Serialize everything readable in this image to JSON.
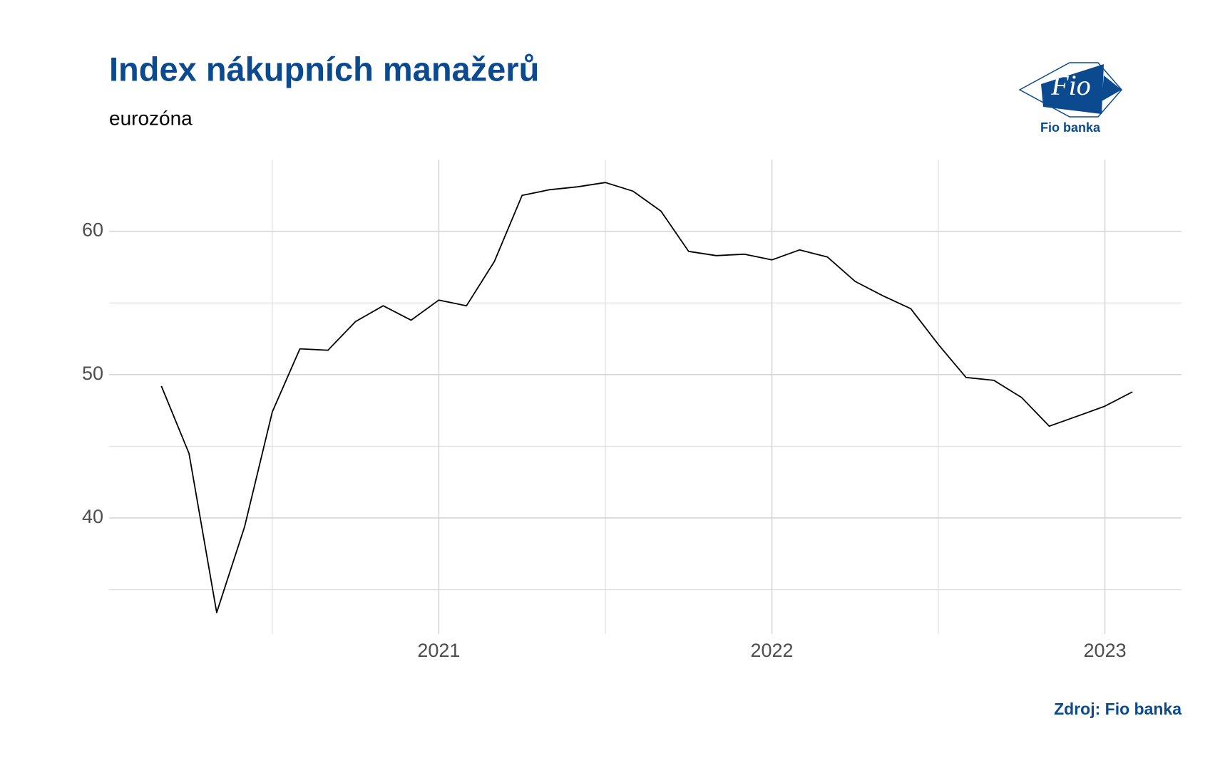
{
  "chart_data": {
    "type": "line",
    "title": "Index nákupních manažerů",
    "subtitle": "eurozóna",
    "source": "Zdroj: Fio banka",
    "logo": {
      "mark": "Fio",
      "caption": "Fio banka"
    },
    "x": [
      2020.167,
      2020.25,
      2020.333,
      2020.417,
      2020.5,
      2020.583,
      2020.667,
      2020.75,
      2020.833,
      2020.917,
      2021.0,
      2021.083,
      2021.167,
      2021.25,
      2021.333,
      2021.417,
      2021.5,
      2021.583,
      2021.667,
      2021.75,
      2021.833,
      2021.917,
      2022.0,
      2022.083,
      2022.167,
      2022.25,
      2022.333,
      2022.417,
      2022.5,
      2022.583,
      2022.667,
      2022.75,
      2022.833,
      2022.917,
      2023.0,
      2023.083
    ],
    "values": [
      49.2,
      44.5,
      33.4,
      39.4,
      47.4,
      51.8,
      51.7,
      53.7,
      54.8,
      53.8,
      55.2,
      54.8,
      57.9,
      62.5,
      62.9,
      63.1,
      63.4,
      62.8,
      61.4,
      58.6,
      58.3,
      58.4,
      58.0,
      58.7,
      58.2,
      56.5,
      55.5,
      54.6,
      52.1,
      49.8,
      49.6,
      48.4,
      46.4,
      47.1,
      47.8,
      48.8
    ],
    "color": "#000000",
    "xlim": [
      2020.01,
      2023.23
    ],
    "xticks": [
      2021,
      2022,
      2023
    ],
    "xminor": [
      2020.5,
      2021.5,
      2022.5
    ],
    "ylim": [
      31.9,
      65
    ],
    "yticks": [
      40,
      50,
      60
    ],
    "yminor": [
      35,
      45,
      55
    ],
    "grid": true
  }
}
